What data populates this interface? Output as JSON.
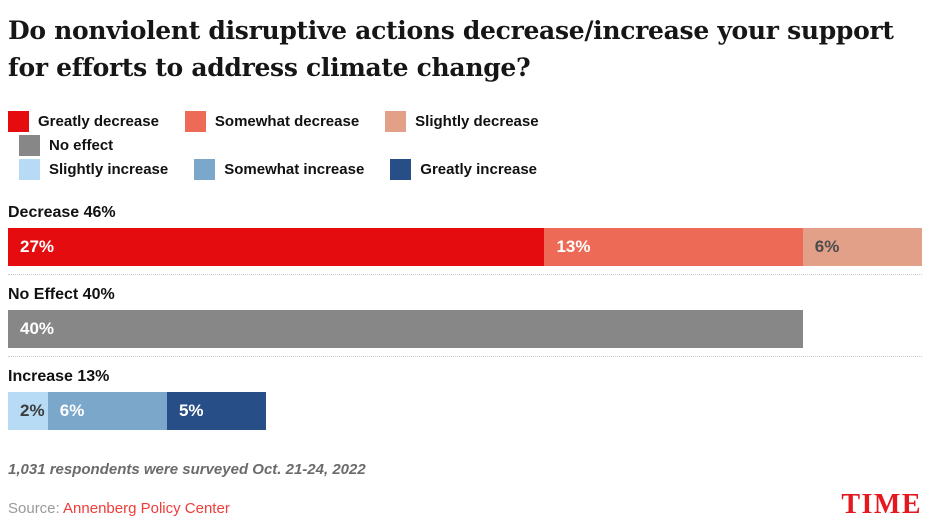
{
  "title": "Do nonviolent disruptive actions decrease/increase your support for efforts to address climate change?",
  "legend": {
    "rows": [
      {
        "items": [
          {
            "label": "Greatly decrease",
            "color": "#e50c10"
          },
          {
            "label": "Somewhat decrease",
            "color": "#ec6a56"
          },
          {
            "label": "Slightly decrease",
            "color": "#e3a089"
          }
        ]
      },
      {
        "items": [
          {
            "label": "No effect",
            "color": "#878787"
          }
        ]
      },
      {
        "items": [
          {
            "label": "Slightly increase",
            "color": "#b8dbf5"
          },
          {
            "label": "Somewhat increase",
            "color": "#7ba7cb"
          },
          {
            "label": "Greatly increase",
            "color": "#274e87"
          }
        ]
      }
    ]
  },
  "chart_data": {
    "type": "bar",
    "subtype": "horizontal-stacked",
    "title": "Do nonviolent disruptive actions decrease/increase your support for efforts to address climate change?",
    "xlim": [
      0,
      46
    ],
    "grid": false,
    "legend_position": "top",
    "categories": [
      "Decrease",
      "No Effect",
      "Increase"
    ],
    "category_totals": [
      46,
      40,
      13
    ],
    "series": [
      {
        "name": "Greatly decrease",
        "color": "#e50c10",
        "values": [
          27,
          0,
          0
        ]
      },
      {
        "name": "Somewhat decrease",
        "color": "#ec6a56",
        "values": [
          13,
          0,
          0
        ]
      },
      {
        "name": "Slightly decrease",
        "color": "#e3a089",
        "values": [
          6,
          0,
          0
        ]
      },
      {
        "name": "No effect",
        "color": "#878787",
        "values": [
          0,
          40,
          0
        ]
      },
      {
        "name": "Slightly increase",
        "color": "#b8dbf5",
        "values": [
          0,
          0,
          2
        ]
      },
      {
        "name": "Somewhat increase",
        "color": "#7ba7cb",
        "values": [
          0,
          0,
          6
        ]
      },
      {
        "name": "Greatly increase",
        "color": "#274e87",
        "values": [
          0,
          0,
          5
        ]
      }
    ],
    "rows": [
      {
        "group_label": "Decrease 46%",
        "total": 46,
        "segments": [
          {
            "name": "Greatly decrease",
            "value": 27,
            "label": "27%",
            "color": "#e50c10",
            "text_color": "#ffffff"
          },
          {
            "name": "Somewhat decrease",
            "value": 13,
            "label": "13%",
            "color": "#ec6a56",
            "text_color": "#ffffff"
          },
          {
            "name": "Slightly decrease",
            "value": 6,
            "label": "6%",
            "color": "#e3a089",
            "text_color": "#4d4d4d"
          }
        ]
      },
      {
        "group_label": "No Effect 40%",
        "total": 40,
        "segments": [
          {
            "name": "No effect",
            "value": 40,
            "label": "40%",
            "color": "#878787",
            "text_color": "#ffffff"
          }
        ]
      },
      {
        "group_label": "Increase 13%",
        "total": 13,
        "segments": [
          {
            "name": "Slightly increase",
            "value": 2,
            "label": "2%",
            "color": "#b8dbf5",
            "text_color": "#3c3c3c"
          },
          {
            "name": "Somewhat increase",
            "value": 6,
            "label": "6%",
            "color": "#7ba7cb",
            "text_color": "#ffffff"
          },
          {
            "name": "Greatly increase",
            "value": 5,
            "label": "5%",
            "color": "#274e87",
            "text_color": "#ffffff"
          }
        ]
      }
    ]
  },
  "footer": {
    "note": "1,031 respondents were surveyed Oct. 21-24, 2022",
    "source_prefix": "Source: ",
    "source_link": "Annenberg Policy Center",
    "source_link_color": "#ee3c38",
    "brand": "TIME",
    "brand_color": "#e5171f"
  }
}
